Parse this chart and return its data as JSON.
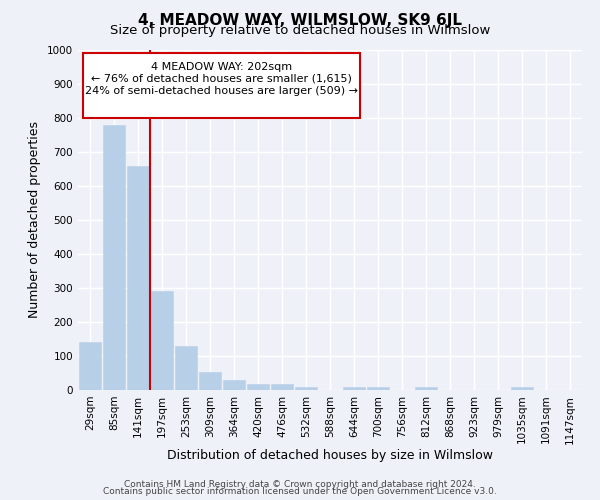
{
  "title": "4, MEADOW WAY, WILMSLOW, SK9 6JL",
  "subtitle": "Size of property relative to detached houses in Wilmslow",
  "xlabel": "Distribution of detached houses by size in Wilmslow",
  "ylabel": "Number of detached properties",
  "categories": [
    "29sqm",
    "85sqm",
    "141sqm",
    "197sqm",
    "253sqm",
    "309sqm",
    "364sqm",
    "420sqm",
    "476sqm",
    "532sqm",
    "588sqm",
    "644sqm",
    "700sqm",
    "756sqm",
    "812sqm",
    "868sqm",
    "923sqm",
    "979sqm",
    "1035sqm",
    "1091sqm",
    "1147sqm"
  ],
  "values": [
    140,
    780,
    660,
    290,
    130,
    53,
    30,
    18,
    18,
    10,
    0,
    10,
    10,
    0,
    10,
    0,
    0,
    0,
    10,
    0,
    0
  ],
  "bar_color": "#b8cfe8",
  "bar_edgecolor": "#b8cfe8",
  "vline_color": "#cc0000",
  "box_text_line1": "4 MEADOW WAY: 202sqm",
  "box_text_line2": "← 76% of detached houses are smaller (1,615)",
  "box_text_line3": "24% of semi-detached houses are larger (509) →",
  "box_color": "#cc0000",
  "ylim": [
    0,
    1000
  ],
  "yticks": [
    0,
    100,
    200,
    300,
    400,
    500,
    600,
    700,
    800,
    900,
    1000
  ],
  "footer_line1": "Contains HM Land Registry data © Crown copyright and database right 2024.",
  "footer_line2": "Contains public sector information licensed under the Open Government Licence v3.0.",
  "background_color": "#eef2f8",
  "plot_background": "#eef2f8",
  "grid_color": "#ffffff",
  "title_fontsize": 11,
  "subtitle_fontsize": 9.5,
  "axis_label_fontsize": 9,
  "tick_fontsize": 7.5,
  "footer_fontsize": 6.5
}
